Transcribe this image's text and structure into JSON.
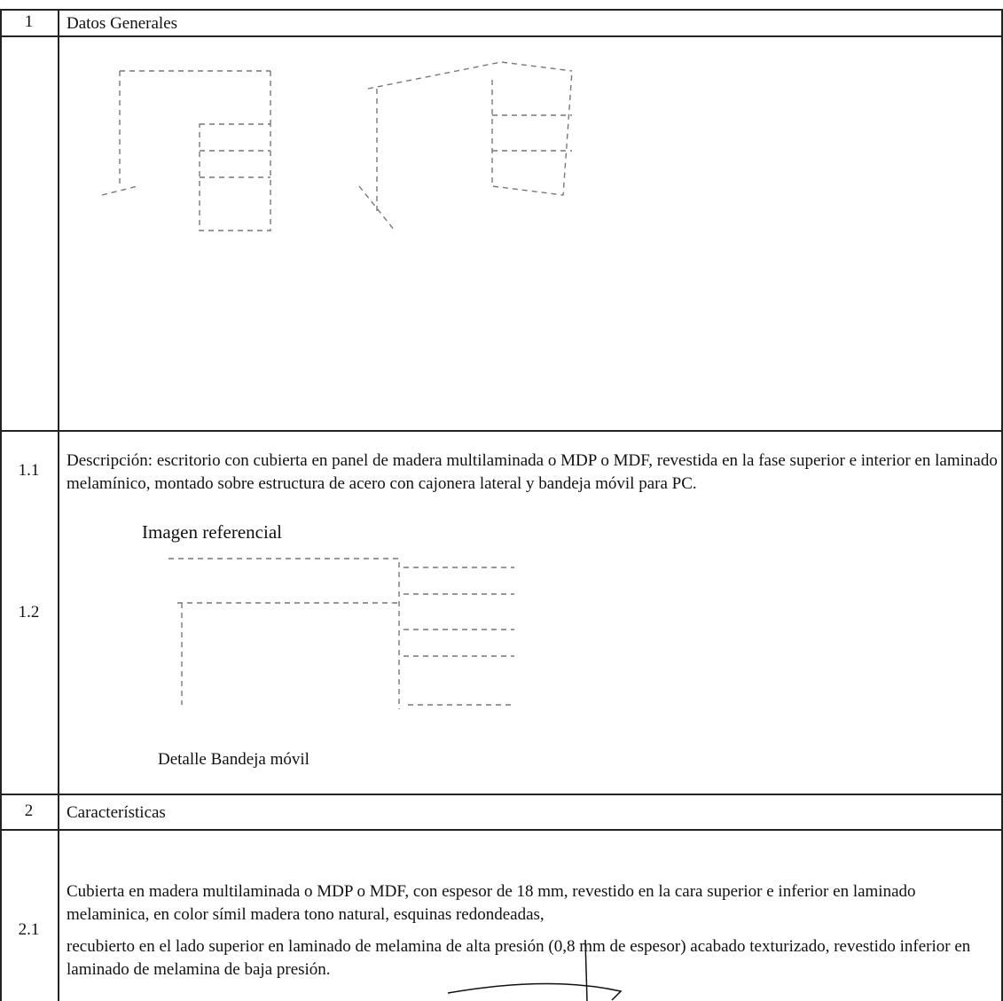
{
  "table": {
    "rows": [
      {
        "number": "1",
        "text": "Datos Generales"
      },
      {
        "number": "1.1",
        "text": "Descripción: escritorio con cubierta en panel de madera multilaminada o MDP o MDF, revestida en la fase superior e interior en laminado melamínico, montado sobre estructura de acero con cajonera lateral y bandeja móvil para PC."
      },
      {
        "number": "1.2",
        "caption_top": "Imagen referencial",
        "caption_bottom": "Detalle Bandeja móvil"
      },
      {
        "number": "2",
        "text": "Características"
      },
      {
        "number": "2.1",
        "paragraphs": [
          "Cubierta en madera multilaminada o MDP o MDF, con espesor de 18 mm, revestido en la cara superior e inferior en laminado melaminica, en color símil madera tono natural, esquinas redondeadas,",
          "recubierto en el lado superior en laminado de melamina de alta presión (0,8 mm de espesor) acabado texturizado, revestido inferior en laminado de melamina de baja presión."
        ]
      }
    ]
  }
}
